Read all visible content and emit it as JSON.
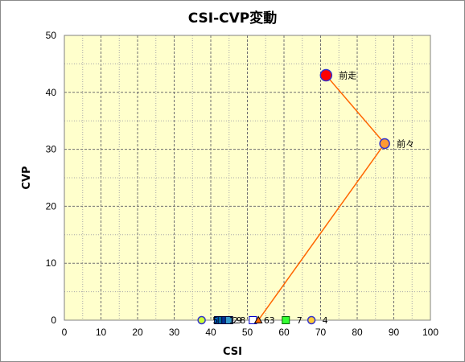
{
  "chart_data": {
    "type": "scatter",
    "title": "CSI-CVP変動",
    "xlabel": "CSI",
    "ylabel": "CVP",
    "xlim": [
      0,
      100
    ],
    "ylim": [
      0,
      50
    ],
    "x_ticks": [
      "0",
      "10",
      "20",
      "30",
      "40",
      "50",
      "60",
      "70",
      "80",
      "90",
      "100"
    ],
    "y_ticks": [
      "0",
      "10",
      "20",
      "30",
      "40",
      "50"
    ],
    "grid": true,
    "plot_background": "#ffffcc",
    "line_color": "#ff6600",
    "trajectory": [
      {
        "x": 71.5,
        "y": 43
      },
      {
        "x": 87.5,
        "y": 31
      },
      {
        "x": 53,
        "y": 0
      }
    ],
    "points": [
      {
        "label": "前走",
        "x": 71.5,
        "y": 43,
        "marker": "circle",
        "fill": "#ff0000",
        "stroke": "#3333cc",
        "size": "large"
      },
      {
        "label": "前々",
        "x": 87.5,
        "y": 31,
        "marker": "circle",
        "fill": "#ff9933",
        "stroke": "#3333cc",
        "size": "medium"
      },
      {
        "label": "5",
        "x": 37.5,
        "y": 0,
        "marker": "circle",
        "fill": "#ccff33",
        "stroke": "#3333cc",
        "size": "small"
      },
      {
        "label": "1",
        "x": 42,
        "y": 0,
        "marker": "square",
        "fill": "#0066cc",
        "stroke": "#000033",
        "size": "small"
      },
      {
        "label": "2",
        "x": 43,
        "y": 0,
        "marker": "square",
        "fill": "#006699",
        "stroke": "#000033",
        "size": "small"
      },
      {
        "label": "9",
        "x": 44,
        "y": 0,
        "marker": "square",
        "fill": "#003399",
        "stroke": "#000033",
        "size": "small"
      },
      {
        "label": "8",
        "x": 45,
        "y": 0,
        "marker": "square",
        "fill": "#3399cc",
        "stroke": "#000033",
        "size": "small"
      },
      {
        "label": "6",
        "x": 51.5,
        "y": 0,
        "marker": "square",
        "fill": "#ffffff",
        "stroke": "#0000cc",
        "size": "small"
      },
      {
        "label": "3",
        "x": 53,
        "y": 0,
        "marker": "triangle",
        "fill": "#ff6600",
        "stroke": "#000000",
        "size": "small"
      },
      {
        "label": "7",
        "x": 60.5,
        "y": 0,
        "marker": "square",
        "fill": "#33ff33",
        "stroke": "#006600",
        "size": "small"
      },
      {
        "label": "4",
        "x": 67.5,
        "y": 0,
        "marker": "circle",
        "fill": "#ffcc33",
        "stroke": "#3333cc",
        "size": "small"
      }
    ]
  }
}
